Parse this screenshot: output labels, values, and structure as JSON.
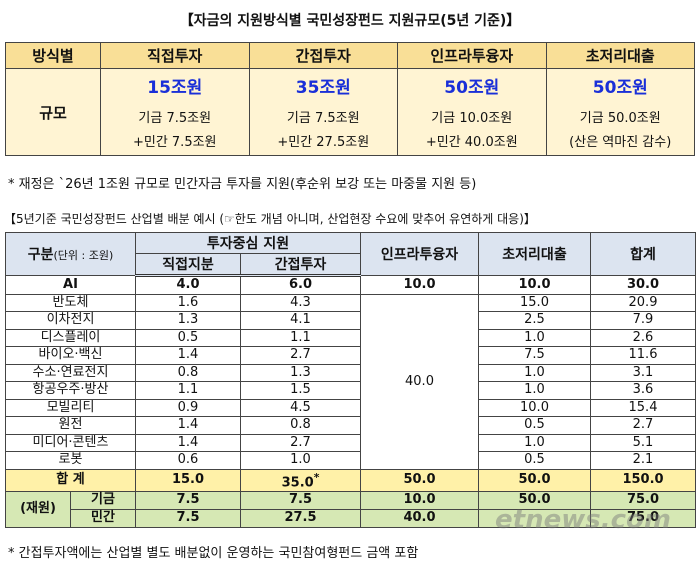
{
  "table1": {
    "title": "【자금의 지원방식별 국민성장펀드 지원규모(5년 기준)】",
    "header": [
      "방식별",
      "직접투자",
      "간접투자",
      "인프라투융자",
      "초저리대출"
    ],
    "row_label": "규모",
    "cells": [
      {
        "amount": "15조원",
        "fund": "기금 7.5조원",
        "private": "+민간 7.5조원"
      },
      {
        "amount": "35조원",
        "fund": "기금 7.5조원",
        "private": "+민간 27.5조원"
      },
      {
        "amount": "50조원",
        "fund": "기금 10.0조원",
        "private": "+민간 40.0조원"
      },
      {
        "amount": "50조원",
        "fund": "기금 50.0조원",
        "private": "(산은 역마진 감수)"
      }
    ],
    "note": "* 재정은 `26년 1조원 규모로 민간자금 투자를 지원(후순위 보강 또는 마중물 지원 등)"
  },
  "table2": {
    "title": "【5년기준 국민성장펀드 산업별 배분 예시 (☞한도 개념 아니며, 산업현장 수요에 맞추어 유연하게 대응)】",
    "header": {
      "category": "구분",
      "unit": "(단위 : 조원)",
      "group": "투자중심 지원",
      "direct": "직접지분",
      "indirect": "간접투자",
      "infra": "인프라투융자",
      "loan": "초저리대출",
      "total": "합계"
    },
    "rows": [
      [
        "AI",
        "4.0",
        "6.0",
        "10.0",
        "10.0",
        "30.0"
      ],
      [
        "반도체",
        "1.6",
        "4.3",
        "15.0",
        "20.9"
      ],
      [
        "이차전지",
        "1.3",
        "4.1",
        "2.5",
        "7.9"
      ],
      [
        "디스플레이",
        "0.5",
        "1.1",
        "1.0",
        "2.6"
      ],
      [
        "바이오·백신",
        "1.4",
        "2.7",
        "7.5",
        "11.6"
      ],
      [
        "수소·연료전지",
        "0.8",
        "1.3",
        "1.0",
        "3.1"
      ],
      [
        "항공우주·방산",
        "1.1",
        "1.5",
        "1.0",
        "3.6"
      ],
      [
        "모빌리티",
        "0.9",
        "4.5",
        "10.0",
        "15.4"
      ],
      [
        "원전",
        "1.4",
        "0.8",
        "0.5",
        "2.7"
      ],
      [
        "미디어·콘텐츠",
        "1.4",
        "2.7",
        "1.0",
        "5.1"
      ],
      [
        "로봇",
        "0.6",
        "1.0",
        "0.5",
        "2.1"
      ]
    ],
    "infra_merged": "40.0",
    "total_row": {
      "label": "합 계",
      "values": [
        "15.0",
        "35.0",
        "50.0",
        "50.0",
        "150.0"
      ],
      "mark": "*"
    },
    "funding": {
      "label": "(재원)",
      "rows": [
        {
          "label": "기금",
          "values": [
            "7.5",
            "7.5",
            "10.0",
            "50.0",
            "75.0"
          ]
        },
        {
          "label": "민간",
          "values": [
            "7.5",
            "27.5",
            "40.0",
            null,
            "75.0"
          ]
        }
      ]
    },
    "footnote": "* 간접투자액에는 산업별 별도 배분없이 운영하는 국민참여형펀드 금액 포함",
    "watermark": "etnews.com"
  }
}
